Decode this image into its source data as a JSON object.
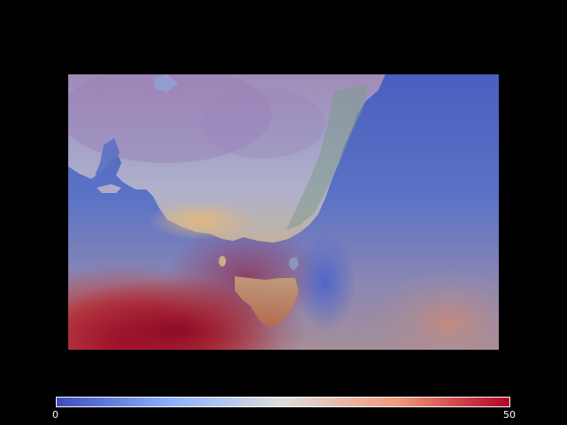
{
  "colormap": {
    "name": "coolwarm",
    "min_label": "0",
    "max_label": "50",
    "stops": [
      "#3b4cc0",
      "#8db0fe",
      "#dddddd",
      "#f4987a",
      "#b40426"
    ]
  },
  "map": {
    "background": "#000000",
    "ocean_tint": "#4a63c4"
  }
}
